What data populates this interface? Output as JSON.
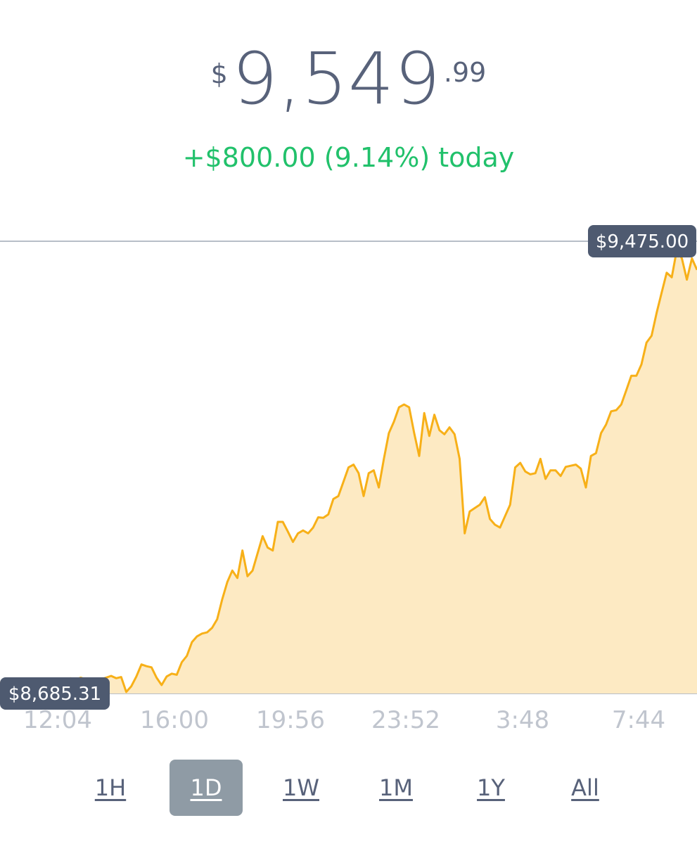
{
  "header": {
    "currency_symbol": "$",
    "price_whole": "9,549",
    "price_cents": ".99",
    "change_text": "+$800.00 (9.14%) today"
  },
  "chart_data": {
    "type": "area",
    "high_label": "$9,475.00",
    "low_label": "$8,685.31",
    "x_ticks": [
      "12:04",
      "16:00",
      "19:56",
      "23:52",
      "3:48",
      "7:44"
    ],
    "ylim": [
      8685.31,
      9475.0
    ],
    "colors": {
      "line": "#f7b018",
      "fill": "#fdeac3",
      "ref_line": "#b7bec8",
      "pill": "#4e5a70"
    },
    "values": [
      8705,
      8700,
      8695,
      8690,
      8696,
      8693,
      8690,
      8682,
      8675,
      8685,
      8690,
      8690,
      8688,
      8690,
      8712,
      8710,
      8713,
      8710,
      8711,
      8703,
      8710,
      8713,
      8716,
      8712,
      8714,
      8688,
      8698,
      8715,
      8736,
      8733,
      8731,
      8713,
      8700,
      8715,
      8720,
      8718,
      8740,
      8751,
      8775,
      8785,
      8790,
      8792,
      8800,
      8815,
      8850,
      8880,
      8900,
      8887,
      8935,
      8890,
      8900,
      8930,
      8960,
      8940,
      8935,
      8985,
      8985,
      8968,
      8950,
      8965,
      8970,
      8965,
      8975,
      8993,
      8992,
      8998,
      9025,
      9030,
      9055,
      9080,
      9085,
      9070,
      9030,
      9070,
      9075,
      9045,
      9095,
      9140,
      9160,
      9185,
      9190,
      9185,
      9140,
      9100,
      9175,
      9135,
      9172,
      9145,
      9138,
      9150,
      9138,
      9095,
      8965,
      9003,
      9009,
      9015,
      9028,
      8990,
      8980,
      8975,
      8995,
      9015,
      9080,
      9088,
      9073,
      9068,
      9070,
      9095,
      9060,
      9075,
      9075,
      9065,
      9081,
      9083,
      9085,
      9078,
      9045,
      9100,
      9105,
      9140,
      9155,
      9178,
      9180,
      9190,
      9215,
      9240,
      9240,
      9260,
      9298,
      9310,
      9350,
      9385,
      9420,
      9412,
      9460,
      9445,
      9408,
      9445,
      9425
    ]
  },
  "ranges": [
    {
      "label": "1H",
      "active": false
    },
    {
      "label": "1D",
      "active": true
    },
    {
      "label": "1W",
      "active": false
    },
    {
      "label": "1M",
      "active": false
    },
    {
      "label": "1Y",
      "active": false
    },
    {
      "label": "All",
      "active": false
    }
  ]
}
